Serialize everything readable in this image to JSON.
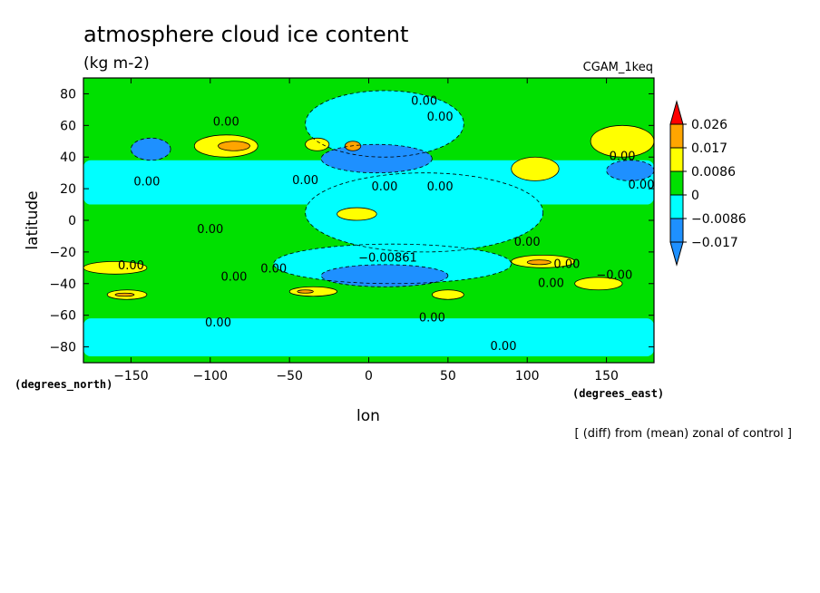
{
  "chart_data": {
    "type": "heatmap",
    "title": "atmosphere cloud ice content",
    "units": "(kg m-2)",
    "experiment": "CGAM_1keq",
    "footnote": "[ (diff) from (mean) zonal of control ]",
    "xlabel": "lon",
    "ylabel": "latitude",
    "x_units_label": "(degrees_east)",
    "y_units_label": "(degrees_north)",
    "xlim": [
      -180,
      180
    ],
    "ylim": [
      -90,
      90
    ],
    "x_ticks": [
      -150,
      -100,
      -50,
      0,
      50,
      100,
      150
    ],
    "x_tick_labels": [
      "−150",
      "−100",
      "−50",
      "0",
      "50",
      "100",
      "150"
    ],
    "y_ticks": [
      80,
      60,
      40,
      20,
      0,
      -20,
      -40,
      -60,
      -80
    ],
    "y_tick_labels": [
      "80",
      "60",
      "40",
      "20",
      "0",
      "−20",
      "−40",
      "−60",
      "−80"
    ],
    "colorbar": {
      "levels": [
        -0.017,
        -0.0086,
        0,
        0.0086,
        0.017,
        0.026
      ],
      "labels": [
        "−0.017",
        "−0.0086",
        "0",
        "0.0086",
        "0.017",
        "0.026"
      ],
      "colors": [
        "#1e90ff",
        "#00ffff",
        "#00e000",
        "#ffff00",
        "#ffa500",
        "#ff0000"
      ],
      "under_color": "#1e90ff",
      "over_color": "#ff0000"
    },
    "background_color": "#00e000",
    "regions": [
      {
        "band": "cyan",
        "lon": [
          -180,
          180
        ],
        "lat": [
          10,
          38
        ]
      },
      {
        "band": "cyan",
        "lon": [
          -180,
          180
        ],
        "lat": [
          -62,
          -86
        ]
      },
      {
        "band": "cyan",
        "lon": [
          -60,
          90
        ],
        "lat": [
          -15,
          -40
        ]
      },
      {
        "band": "cyan",
        "lon": [
          -40,
          110
        ],
        "lat": [
          -20,
          30
        ]
      },
      {
        "band": "cyan",
        "lon": [
          -40,
          60
        ],
        "lat": [
          40,
          82
        ]
      },
      {
        "band": "blue",
        "lon": [
          -150,
          -125
        ],
        "lat": [
          38,
          52
        ]
      },
      {
        "band": "blue",
        "lon": [
          -30,
          40
        ],
        "lat": [
          30,
          48
        ]
      },
      {
        "band": "blue",
        "lon": [
          150,
          180
        ],
        "lat": [
          25,
          38
        ]
      },
      {
        "band": "blue",
        "lon": [
          -30,
          50
        ],
        "lat": [
          -28,
          -42
        ]
      },
      {
        "band": "yellow",
        "lon": [
          -110,
          -70
        ],
        "lat": [
          40,
          54
        ]
      },
      {
        "band": "orange",
        "lon": [
          -95,
          -75
        ],
        "lat": [
          44,
          50
        ]
      },
      {
        "band": "yellow",
        "lon": [
          -40,
          -25
        ],
        "lat": [
          44,
          52
        ]
      },
      {
        "band": "orange",
        "lon": [
          -15,
          -5
        ],
        "lat": [
          44,
          50
        ]
      },
      {
        "band": "yellow",
        "lon": [
          90,
          120
        ],
        "lat": [
          25,
          40
        ]
      },
      {
        "band": "yellow",
        "lon": [
          140,
          180
        ],
        "lat": [
          40,
          60
        ]
      },
      {
        "band": "yellow",
        "lon": [
          -20,
          5
        ],
        "lat": [
          0,
          8
        ]
      },
      {
        "band": "yellow",
        "lon": [
          -180,
          -140
        ],
        "lat": [
          -26,
          -34
        ]
      },
      {
        "band": "yellow",
        "lon": [
          -165,
          -140
        ],
        "lat": [
          -44,
          -50
        ]
      },
      {
        "band": "orange",
        "lon": [
          -160,
          -148
        ],
        "lat": [
          -46,
          -48
        ]
      },
      {
        "band": "yellow",
        "lon": [
          -50,
          -20
        ],
        "lat": [
          -42,
          -48
        ]
      },
      {
        "band": "orange",
        "lon": [
          -45,
          -35
        ],
        "lat": [
          -44,
          -46
        ]
      },
      {
        "band": "yellow",
        "lon": [
          90,
          130
        ],
        "lat": [
          -22,
          -30
        ]
      },
      {
        "band": "orange",
        "lon": [
          100,
          115
        ],
        "lat": [
          -25,
          -28
        ]
      },
      {
        "band": "yellow",
        "lon": [
          40,
          60
        ],
        "lat": [
          -44,
          -50
        ]
      },
      {
        "band": "yellow",
        "lon": [
          130,
          160
        ],
        "lat": [
          -36,
          -44
        ]
      }
    ],
    "contour_labels": [
      {
        "text": "0.00",
        "lon": 35,
        "lat": 73
      },
      {
        "text": "0.00",
        "lon": 45,
        "lat": 63
      },
      {
        "text": "0.00",
        "lon": -90,
        "lat": 60
      },
      {
        "text": "0.00",
        "lon": -140,
        "lat": 22
      },
      {
        "text": "0.00",
        "lon": -40,
        "lat": 23
      },
      {
        "text": "0.00",
        "lon": 10,
        "lat": 19
      },
      {
        "text": "0.00",
        "lon": 45,
        "lat": 19
      },
      {
        "text": "0.00",
        "lon": 160,
        "lat": 38
      },
      {
        "text": "0.00",
        "lon": 172,
        "lat": 20
      },
      {
        "text": "0.00",
        "lon": -100,
        "lat": -8
      },
      {
        "text": "0.00",
        "lon": -150,
        "lat": -31
      },
      {
        "text": "0.00",
        "lon": -60,
        "lat": -33
      },
      {
        "text": "0.00",
        "lon": 100,
        "lat": -16
      },
      {
        "text": "0.00",
        "lon": 125,
        "lat": -30
      },
      {
        "text": "0.00",
        "lon": 115,
        "lat": -42
      },
      {
        "text": "0.00",
        "lon": -85,
        "lat": -38
      },
      {
        "text": "0.00",
        "lon": -95,
        "lat": -67
      },
      {
        "text": "0.00",
        "lon": 40,
        "lat": -64
      },
      {
        "text": "0.00",
        "lon": 85,
        "lat": -82
      },
      {
        "text": "−0.00861",
        "lon": 12,
        "lat": -26
      },
      {
        "text": "−0.00",
        "lon": 155,
        "lat": -37
      }
    ]
  }
}
